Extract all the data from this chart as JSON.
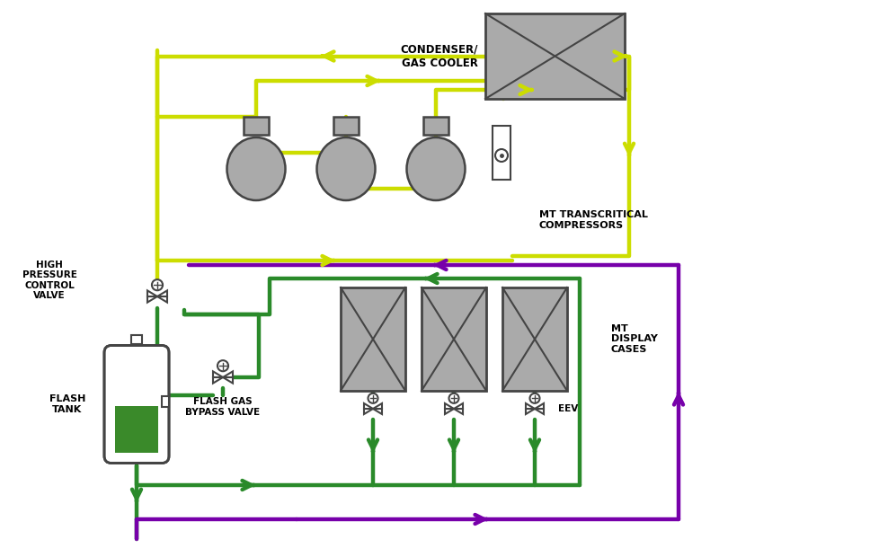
{
  "bg_color": "#ffffff",
  "lime": "#ccdd00",
  "green": "#2a8a2a",
  "purple": "#7700aa",
  "dark_gray": "#444444",
  "fill_gray": "#aaaaaa",
  "condenser_label": "CONDENSER/\nGAS COOLER",
  "compressor_label": "MT TRANSCRITICAL\nCOMPRESSORS",
  "display_label": "MT\nDISPLAY\nCASES",
  "hpcv_label": "HIGH\nPRESSURE\nCONTROL\nVALVE",
  "flash_tank_label": "FLASH\nTANK",
  "flash_gas_label": "FLASH GAS\nBYPASS VALVE",
  "eev_label": "EEV",
  "figw": 9.68,
  "figh": 6.1,
  "dpi": 100
}
